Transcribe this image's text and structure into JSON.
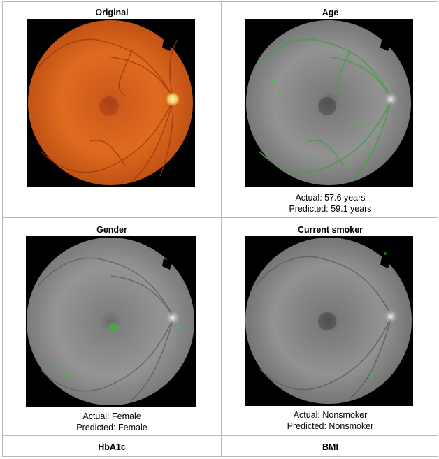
{
  "panels": {
    "original": {
      "title": "Original"
    },
    "age": {
      "title": "Age",
      "actual": "Actual: 57.6 years",
      "predicted": "Predicted: 59.1 years"
    },
    "gender": {
      "title": "Gender",
      "actual": "Actual: Female",
      "predicted": "Predicted: Female"
    },
    "smoker": {
      "title": "Current smoker",
      "actual": "Actual: Nonsmoker",
      "predicted": "Predicted: Nonsmoker"
    },
    "hba1c": {
      "title": "HbA1c"
    },
    "bmi": {
      "title": "BMI"
    }
  },
  "colors": {
    "fundus_orange": "#d8661e",
    "heatmap_gray": "#8a8a8a",
    "attention_green": "#3bbf3b",
    "border": "#b8b8b8"
  }
}
